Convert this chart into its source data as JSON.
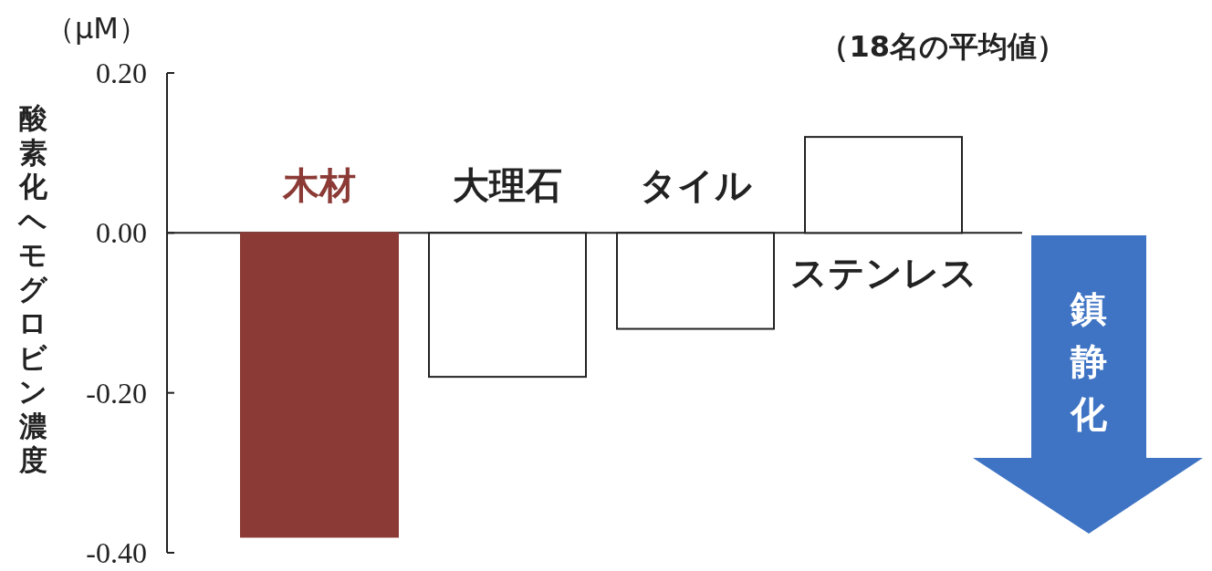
{
  "chart_data": {
    "type": "bar",
    "ylabel": "酸素化ヘモグロビン濃度",
    "categories": [
      "木材",
      "大理石",
      "タイル",
      "ステンレス"
    ],
    "values": [
      -0.38,
      -0.18,
      -0.12,
      0.12
    ],
    "colors": [
      "#8b3a35",
      "#ffffff",
      "#ffffff",
      "#ffffff"
    ],
    "ylim": [
      -0.4,
      0.2
    ],
    "yticks": [
      {
        "value": 0.2,
        "label": "0.20"
      },
      {
        "value": 0,
        "label": "0.00"
      },
      {
        "value": -0.2,
        "label": "-0.20"
      },
      {
        "value": -0.4,
        "label": "-0.40"
      }
    ],
    "annotations": [
      "（μM）",
      "（18名の平均値）",
      "鎮静化"
    ]
  }
}
